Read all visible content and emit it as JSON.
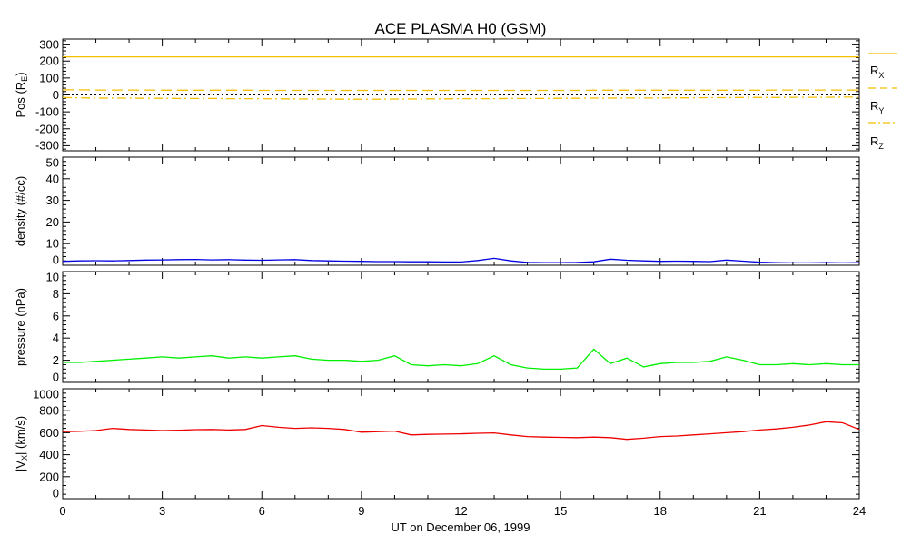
{
  "chart_data": {
    "type": "line",
    "title": "ACE PLASMA H0 (GSM)",
    "xlabel": "UT on December 06, 1999",
    "xlim": [
      0,
      24
    ],
    "xticks": [
      "0",
      "3",
      "6",
      "9",
      "12",
      "15",
      "18",
      "21",
      "24"
    ],
    "x": [
      0,
      0.5,
      1,
      1.5,
      2,
      2.5,
      3,
      3.5,
      4,
      4.5,
      5,
      5.5,
      6,
      6.5,
      7,
      7.5,
      8,
      8.5,
      9,
      9.5,
      10,
      10.5,
      11,
      11.5,
      12,
      12.5,
      13,
      13.5,
      14,
      14.5,
      15,
      15.5,
      16,
      16.5,
      17,
      17.5,
      18,
      18.5,
      19,
      19.5,
      20,
      20.5,
      21,
      21.5,
      22,
      22.5,
      23,
      23.5,
      24
    ],
    "panels": [
      {
        "name": "position",
        "ylabel": {
          "pre": "Pos (R",
          "sub": "E",
          "post": ")"
        },
        "ylim": [
          -330,
          330
        ],
        "yticks": [
          "300",
          "200",
          "100",
          "0",
          "-100",
          "-200",
          "-300"
        ],
        "ytick_values": [
          300,
          200,
          100,
          0,
          -100,
          -200,
          -300
        ],
        "zero_line": true,
        "series": [
          {
            "name": "RX",
            "label": "R",
            "sub": "X",
            "color": "#f5c000",
            "dash": "none",
            "values": [
              225,
              225,
              225,
              225,
              225,
              225,
              225,
              225,
              225,
              225,
              225,
              225,
              225,
              225,
              225,
              225,
              225,
              225,
              225,
              225,
              225,
              225,
              225,
              225,
              225,
              225,
              225,
              225,
              225,
              225,
              225,
              225,
              225,
              225,
              225,
              225,
              225,
              225,
              225,
              225,
              225,
              225,
              225,
              225,
              225,
              225,
              225,
              225,
              225
            ]
          },
          {
            "name": "RY",
            "label": "R",
            "sub": "Y",
            "color": "#f5c000",
            "dash": "12 6",
            "values": [
              30,
              30,
              29,
              29,
              29,
              29,
              28,
              28,
              28,
              28,
              28,
              28,
              27,
              27,
              27,
              27,
              27,
              27,
              27,
              27,
              27,
              27,
              27,
              27,
              27,
              27,
              27,
              27,
              27,
              27,
              27,
              27,
              28,
              28,
              28,
              28,
              28,
              28,
              28,
              28,
              28,
              28,
              28,
              29,
              29,
              29,
              29,
              29,
              29
            ]
          },
          {
            "name": "RZ",
            "label": "R",
            "sub": "Z",
            "color": "#f5c000",
            "dash": "10 4 2 4",
            "values": [
              -15,
              -17,
              -18,
              -19,
              -19,
              -20,
              -20,
              -21,
              -21,
              -21,
              -22,
              -22,
              -22,
              -23,
              -23,
              -24,
              -24,
              -25,
              -25,
              -25,
              -24,
              -24,
              -23,
              -23,
              -22,
              -22,
              -22,
              -21,
              -21,
              -21,
              -20,
              -20,
              -19,
              -19,
              -18,
              -18,
              -18,
              -17,
              -17,
              -16,
              -16,
              -15,
              -15,
              -15,
              -14,
              -14,
              -14,
              -13,
              -13
            ]
          }
        ]
      },
      {
        "name": "density",
        "ylabel": {
          "pre": "density (#/cc)",
          "sub": "",
          "post": ""
        },
        "ylim": [
          0,
          50
        ],
        "yticks": [
          "50",
          "40",
          "30",
          "20",
          "10",
          "0"
        ],
        "ytick_values": [
          50,
          40,
          30,
          20,
          10,
          0
        ],
        "series": [
          {
            "name": "density",
            "color": "#0000e0",
            "dash": "none",
            "values": [
              1.8,
              2.0,
              2.1,
              2.0,
              2.2,
              2.4,
              2.5,
              2.6,
              2.7,
              2.5,
              2.6,
              2.4,
              2.3,
              2.5,
              2.6,
              2.2,
              2.0,
              1.9,
              1.8,
              1.7,
              1.7,
              1.6,
              1.6,
              1.5,
              1.5,
              2.2,
              3.2,
              2.0,
              1.3,
              1.2,
              1.2,
              1.3,
              1.6,
              2.8,
              2.3,
              2.0,
              1.8,
              1.9,
              1.8,
              1.7,
              2.4,
              1.9,
              1.4,
              1.2,
              1.1,
              1.1,
              1.2,
              1.1,
              1.2
            ]
          }
        ]
      },
      {
        "name": "pressure",
        "ylabel": {
          "pre": "pressure (nPa)",
          "sub": "",
          "post": ""
        },
        "ylim": [
          0,
          10
        ],
        "yticks": [
          "10",
          "8",
          "6",
          "4",
          "2",
          "0"
        ],
        "ytick_values": [
          10,
          8,
          6,
          4,
          2,
          0
        ],
        "series": [
          {
            "name": "pressure",
            "color": "#00ee00",
            "dash": "none",
            "values": [
              1.8,
              1.8,
              1.9,
              2.0,
              2.1,
              2.2,
              2.3,
              2.2,
              2.3,
              2.4,
              2.2,
              2.3,
              2.2,
              2.3,
              2.4,
              2.1,
              2.0,
              2.0,
              1.9,
              2.0,
              2.4,
              1.6,
              1.5,
              1.6,
              1.5,
              1.7,
              2.4,
              1.6,
              1.3,
              1.2,
              1.2,
              1.3,
              3.0,
              1.7,
              2.2,
              1.4,
              1.7,
              1.8,
              1.8,
              1.9,
              2.3,
              2.0,
              1.6,
              1.6,
              1.7,
              1.6,
              1.7,
              1.6,
              1.6
            ]
          }
        ]
      },
      {
        "name": "velocity",
        "ylabel": {
          "pre": "|V",
          "sub": "X",
          "post": "| (km/s)"
        },
        "ylim": [
          0,
          1000
        ],
        "yticks": [
          "1000",
          "800",
          "600",
          "400",
          "200",
          "0"
        ],
        "ytick_values": [
          1000,
          800,
          600,
          400,
          200,
          0
        ],
        "series": [
          {
            "name": "Vx",
            "color": "#ee0000",
            "dash": "none",
            "values": [
              610,
              612,
              620,
              640,
              630,
              625,
              620,
              622,
              628,
              630,
              625,
              630,
              665,
              650,
              640,
              645,
              640,
              630,
              605,
              610,
              615,
              580,
              585,
              588,
              590,
              595,
              598,
              580,
              565,
              560,
              558,
              555,
              560,
              555,
              540,
              550,
              565,
              570,
              580,
              590,
              600,
              610,
              625,
              635,
              650,
              670,
              700,
              690,
              630
            ]
          }
        ]
      }
    ]
  }
}
